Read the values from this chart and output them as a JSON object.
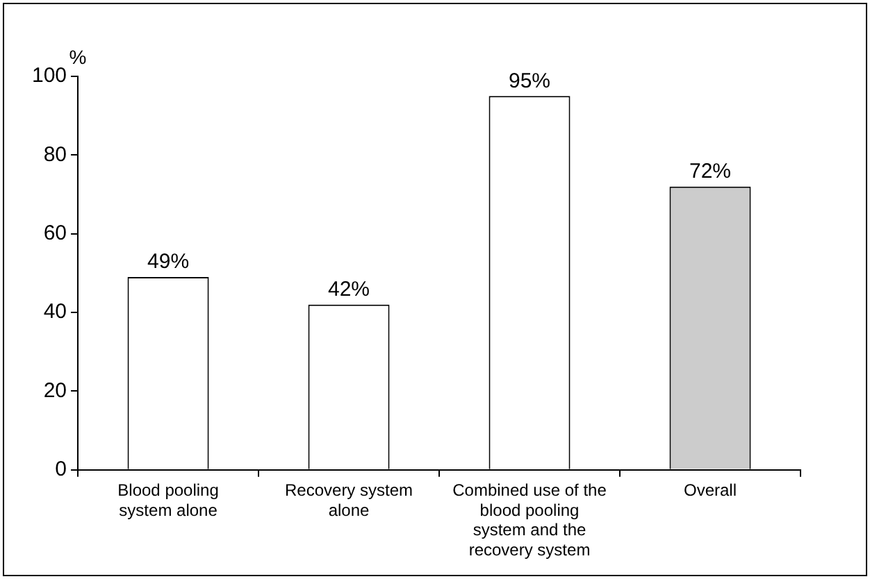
{
  "chart_data": {
    "type": "bar",
    "ylabel": "%",
    "categories": [
      "Blood pooling system alone",
      "Recovery system alone",
      "Combined use of the blood pooling system and the recovery system",
      "Overall"
    ],
    "values": [
      49,
      42,
      95,
      72
    ],
    "colors": [
      "#ffffff",
      "#ffffff",
      "#ffffff",
      "#cccccc"
    ],
    "value_labels": [
      "49%",
      "42%",
      "95%",
      "72%"
    ],
    "ylim": [
      0,
      100
    ],
    "yticks": [
      0,
      20,
      40,
      60,
      80,
      100
    ],
    "grid": false,
    "legend": false
  }
}
